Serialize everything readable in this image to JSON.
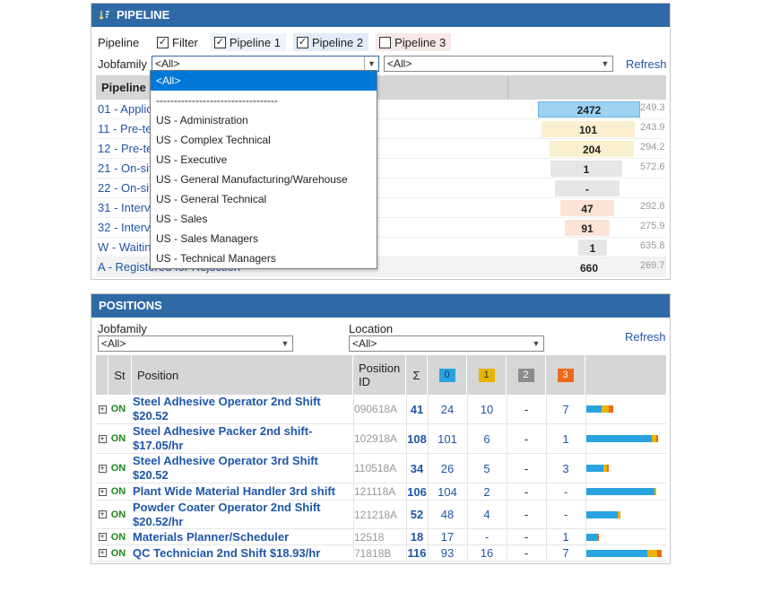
{
  "pipeline": {
    "title": "PIPELINE",
    "filter_label": "Pipeline",
    "checkboxes": [
      {
        "label": "Filter",
        "checked": true
      },
      {
        "label": "Pipeline 1",
        "checked": true
      },
      {
        "label": "Pipeline 2",
        "checked": true
      },
      {
        "label": "Pipeline 3",
        "checked": false
      }
    ],
    "jobfamily_label": "Jobfamily",
    "jobfamily_value": "<All>",
    "second_select_value": "<All>",
    "refresh": "Refresh",
    "column_header": "Pipeline",
    "rows": [
      {
        "name": "01 - Applic",
        "count": "2472",
        "avg": "249.3",
        "color": "#9dd2f3",
        "border": "#6ab4e6"
      },
      {
        "name": "11 - Pre-te",
        "count": "101",
        "avg": "243.9",
        "color": "#faefce",
        "border": "#faefce"
      },
      {
        "name": "12 - Pre-te",
        "count": "204",
        "avg": "294.2",
        "color": "#faefce",
        "border": "#faefce"
      },
      {
        "name": "21 - On-sit",
        "count": "1",
        "avg": "572.6",
        "color": "#e6e6e6",
        "border": "#e6e6e6"
      },
      {
        "name": "22 - On-sit",
        "count": "-",
        "avg": "",
        "color": "#e6e6e6",
        "border": "#e6e6e6"
      },
      {
        "name": "31 - Interv",
        "count": "47",
        "avg": "292.8",
        "color": "#fde3d5",
        "border": "#fde3d5"
      },
      {
        "name": "32 - Interv",
        "count": "91",
        "avg": "275.9",
        "color": "#fde3d5",
        "border": "#fde3d5"
      },
      {
        "name": "W - Waitin",
        "count": "1",
        "avg": "635.8",
        "color": "#e6e6e6",
        "border": "#e6e6e6"
      },
      {
        "name": "A - Registered for Rejection",
        "count": "660",
        "avg": "269.7",
        "color": "transparent",
        "border": "transparent"
      }
    ],
    "dropdown_options": [
      "<All>",
      "----------------------------------",
      "US - Administration",
      "US - Complex Technical",
      "US - Executive",
      "US - General Manufacturing/Warehouse",
      "US - General Technical",
      "US - Sales",
      "US - Sales Managers",
      "US - Technical Managers"
    ]
  },
  "positions": {
    "title": "POSITIONS",
    "jobfamily_label": "Jobfamily",
    "jobfamily_value": "<All>",
    "location_label": "Location",
    "location_value": "<All>",
    "refresh": "Refresh",
    "headers": {
      "st": "St",
      "position": "Position",
      "position_id": "Position ID",
      "sum": "Σ",
      "b0": "0",
      "b1": "1",
      "b2": "2",
      "b3": "3"
    },
    "badge_colors": {
      "b0": "#29a3e0",
      "b1": "#e8b400",
      "b2": "#8c8c8c",
      "b3": "#ee6a1a"
    },
    "rows": [
      {
        "name": "Steel Adhesive Operator 2nd Shift $20.52",
        "status": "ON",
        "id": "090618A",
        "sum": "41",
        "n0": "24",
        "n1": "10",
        "n2": "-",
        "n3": "7",
        "spark": [
          24,
          10,
          0,
          7
        ]
      },
      {
        "name": "Steel Adhesive Packer 2nd shift- $17.05/hr",
        "status": "ON",
        "id": "102918A",
        "sum": "108",
        "n0": "101",
        "n1": "6",
        "n2": "-",
        "n3": "1",
        "spark": [
          101,
          6,
          0,
          1
        ]
      },
      {
        "name": "Steel Adhesive Operator 3rd Shift $20.52",
        "status": "ON",
        "id": "110518A",
        "sum": "34",
        "n0": "26",
        "n1": "5",
        "n2": "-",
        "n3": "3",
        "spark": [
          26,
          5,
          0,
          3
        ]
      },
      {
        "name": "Plant Wide Material Handler 3rd shift",
        "status": "ON",
        "id": "121118A",
        "sum": "106",
        "n0": "104",
        "n1": "2",
        "n2": "-",
        "n3": "-",
        "spark": [
          104,
          2,
          0,
          0
        ]
      },
      {
        "name": "Powder Coater Operator 2nd Shift $20.52/hr",
        "status": "ON",
        "id": "121218A",
        "sum": "52",
        "n0": "48",
        "n1": "4",
        "n2": "-",
        "n3": "-",
        "spark": [
          48,
          4,
          0,
          0
        ]
      },
      {
        "name": "Materials Planner/Scheduler",
        "status": "ON",
        "id": "12518",
        "sum": "18",
        "n0": "17",
        "n1": "-",
        "n2": "-",
        "n3": "1",
        "spark": [
          17,
          0,
          0,
          1
        ]
      },
      {
        "name": "QC Technician 2nd Shift $18.93/hr",
        "status": "ON",
        "id": "71818B",
        "sum": "116",
        "n0": "93",
        "n1": "16",
        "n2": "-",
        "n3": "7",
        "spark": [
          93,
          16,
          0,
          7
        ]
      }
    ]
  }
}
